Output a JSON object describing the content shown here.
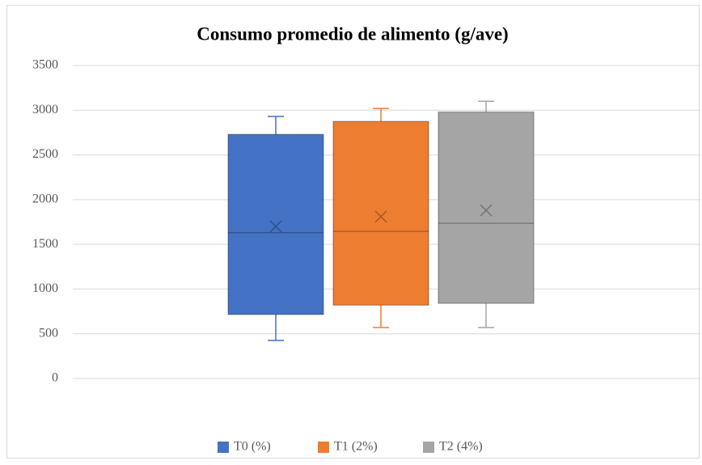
{
  "chart_data": {
    "type": "box",
    "title": "Consumo promedio de alimento (g/ave)",
    "series": [
      {
        "name": "T0 (%)",
        "color": "#4472c4",
        "min": 425,
        "q1": 715,
        "median": 1630,
        "q3": 2730,
        "max": 2930,
        "mean": 1700
      },
      {
        "name": "T1 (2%)",
        "color": "#ed7d31",
        "min": 570,
        "q1": 820,
        "median": 1645,
        "q3": 2875,
        "max": 3020,
        "mean": 1810
      },
      {
        "name": "T2 (4%)",
        "color": "#a5a5a5",
        "min": 570,
        "q1": 840,
        "median": 1735,
        "q3": 2980,
        "max": 3100,
        "mean": 1880
      }
    ],
    "ylim": [
      0,
      3500
    ],
    "yticks": [
      0,
      500,
      1000,
      1500,
      2000,
      2500,
      3000,
      3500
    ],
    "grid": true,
    "legend": "bottom"
  }
}
